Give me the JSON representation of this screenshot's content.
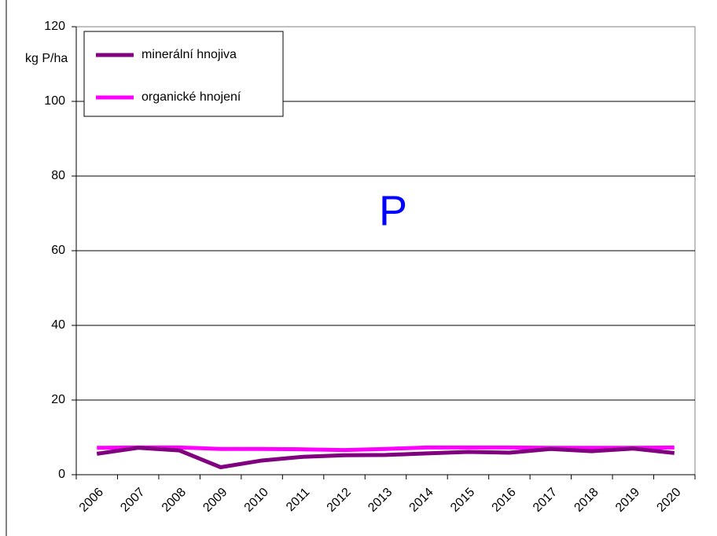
{
  "chart_data": {
    "type": "line",
    "annotation": "P",
    "ylabel": "kg P/ha",
    "categories": [
      "2006",
      "2007",
      "2008",
      "2009",
      "2010",
      "2011",
      "2012",
      "2013",
      "2014",
      "2015",
      "2016",
      "2017",
      "2018",
      "2019",
      "2020"
    ],
    "series": [
      {
        "name": "minerální hnojiva",
        "color": "#800080",
        "values": [
          5.6,
          7.2,
          6.5,
          2.0,
          3.8,
          4.8,
          5.2,
          5.3,
          5.7,
          6.1,
          5.9,
          6.9,
          6.3,
          7.0,
          5.8
        ]
      },
      {
        "name": "organické hnojení",
        "color": "#ff00ff",
        "values": [
          7.2,
          7.3,
          7.3,
          6.9,
          6.9,
          6.8,
          6.6,
          6.9,
          7.3,
          7.3,
          7.3,
          7.2,
          7.2,
          7.2,
          7.3
        ]
      }
    ],
    "ylim": [
      0,
      120
    ],
    "yticks": [
      0,
      20,
      40,
      60,
      80,
      100,
      120
    ],
    "grid": true,
    "legend": "top-left"
  }
}
